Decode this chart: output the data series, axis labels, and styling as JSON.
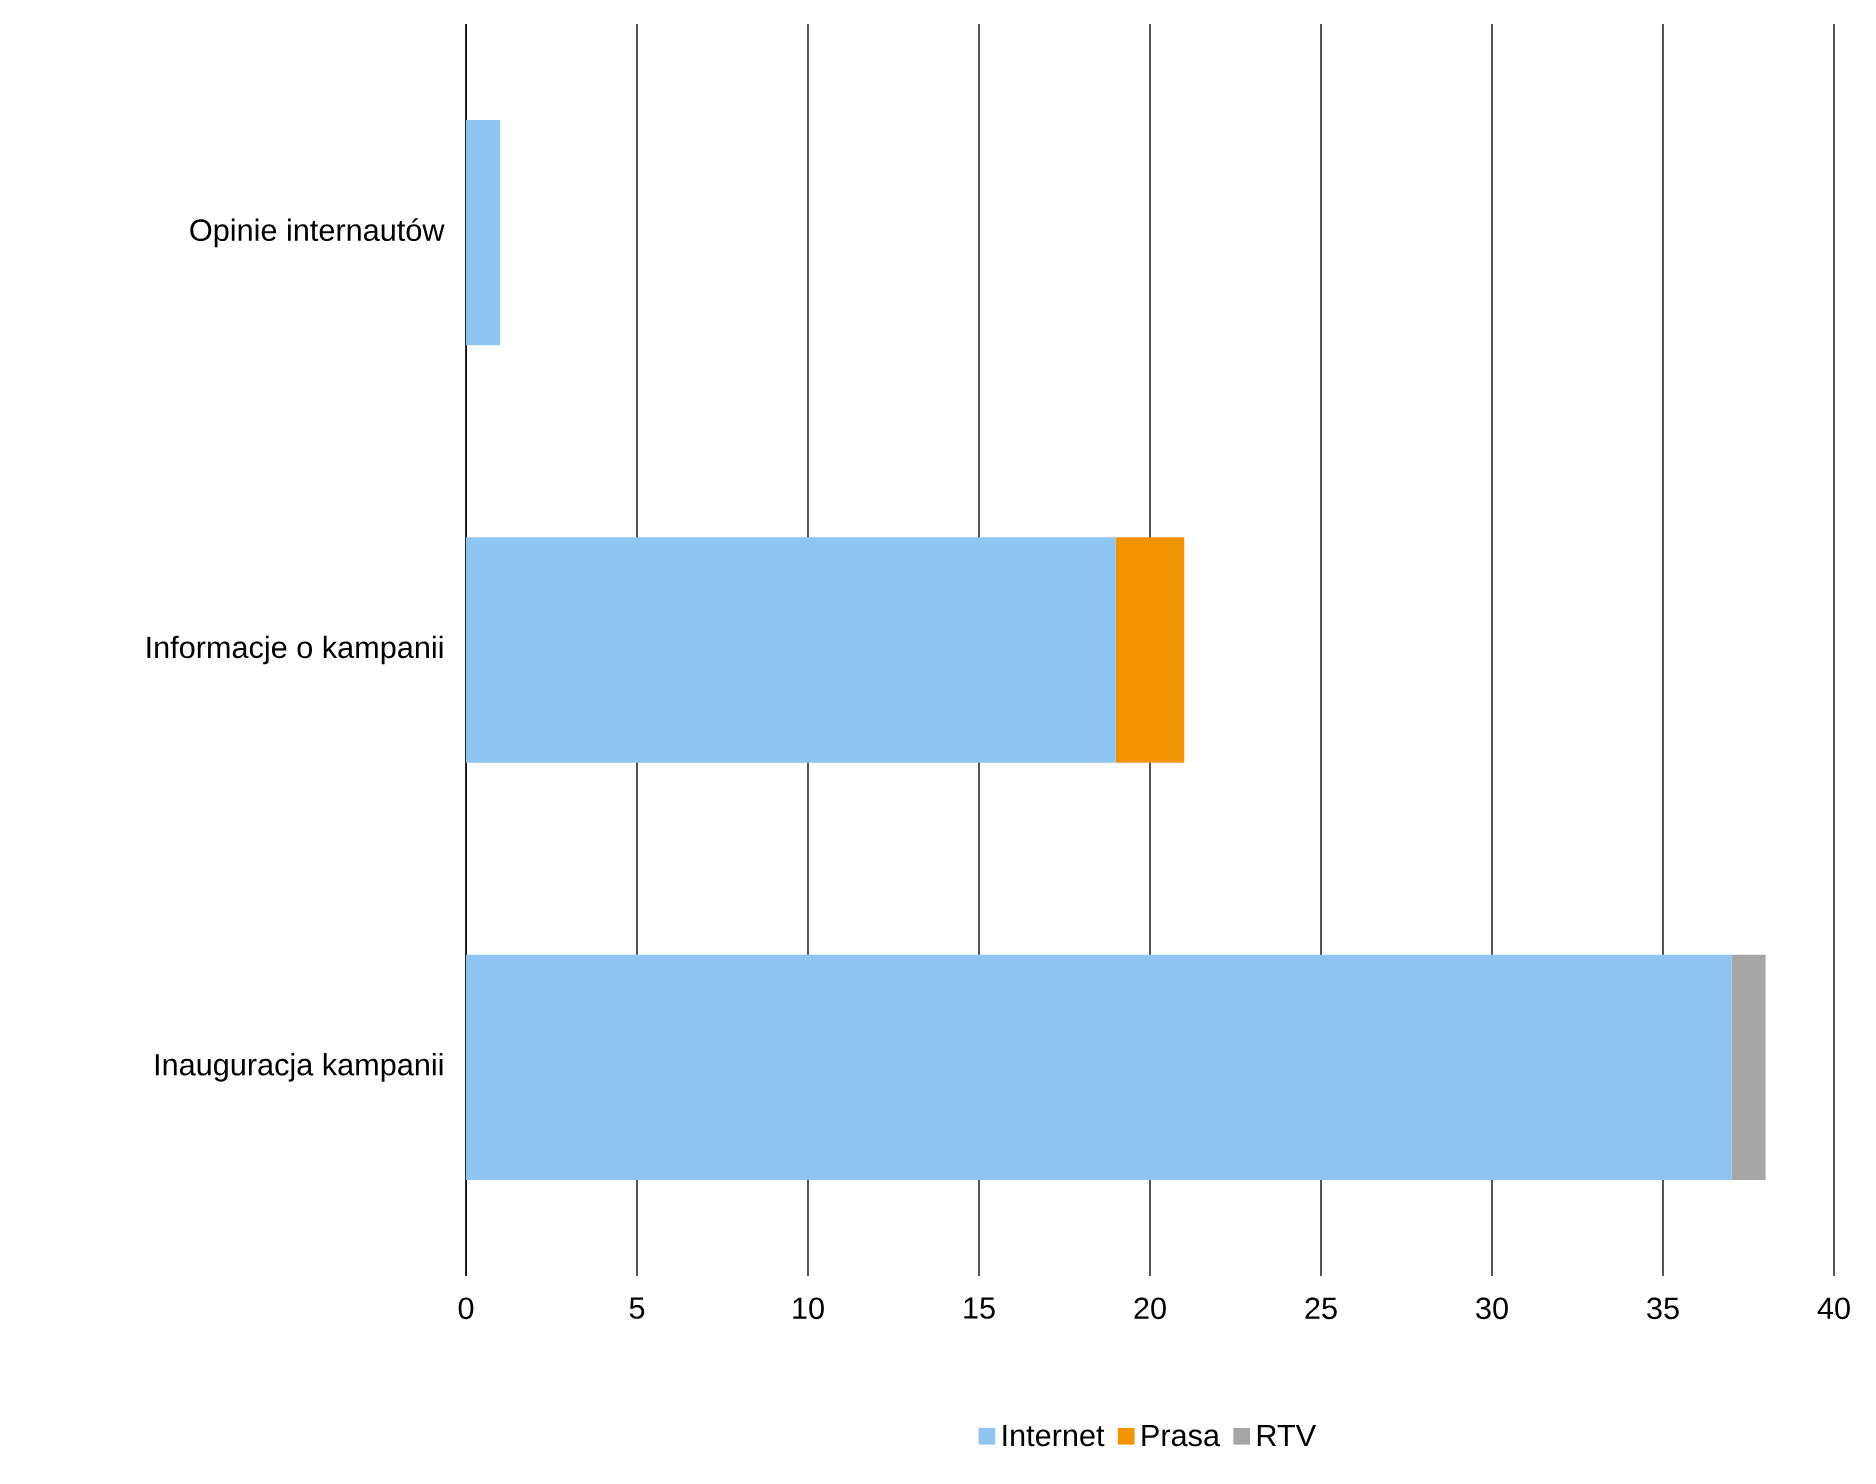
{
  "chart_data": {
    "type": "bar",
    "orientation": "horizontal",
    "stacked": true,
    "categories": [
      "Opinie internautów",
      "Informacje o kampanii",
      "Inauguracja kampanii"
    ],
    "series": [
      {
        "name": "Internet",
        "color": "#8ec5f2",
        "values": [
          1,
          19,
          37
        ]
      },
      {
        "name": "Prasa",
        "color": "#f29400",
        "values": [
          null,
          2,
          null
        ]
      },
      {
        "name": "RTV",
        "color": "#a6a6a6",
        "values": [
          null,
          null,
          1
        ]
      }
    ],
    "xlim": [
      0,
      40
    ],
    "xticks": [
      0,
      5,
      10,
      15,
      20,
      25,
      30,
      35,
      40
    ],
    "grid": "x",
    "legend": "bottom"
  }
}
